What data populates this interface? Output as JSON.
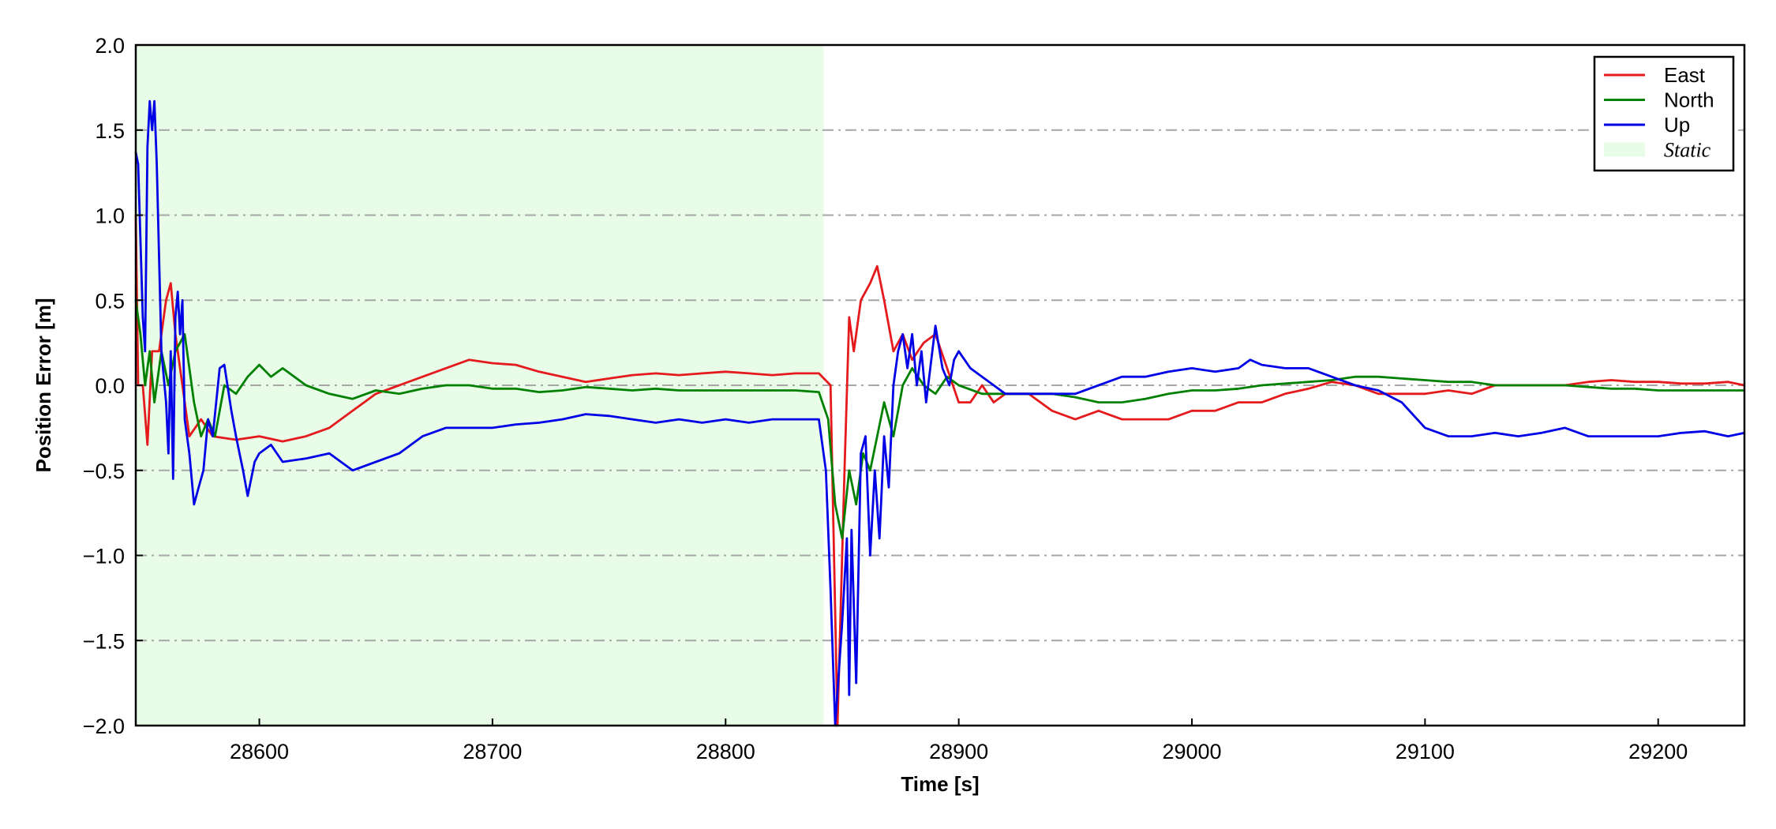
{
  "chart_data": {
    "type": "line",
    "title": "",
    "xlabel": "Time [s]",
    "ylabel": "Position Error [m]",
    "xlim": [
      28547,
      29237
    ],
    "ylim": [
      -2.0,
      2.0
    ],
    "x_ticks": [
      28600,
      28700,
      28800,
      28900,
      29000,
      29100,
      29200
    ],
    "x_tick_labels": [
      "28600",
      "28700",
      "28800",
      "28900",
      "29000",
      "29100",
      "29200"
    ],
    "y_ticks": [
      2.0,
      1.5,
      1.0,
      0.5,
      0.0,
      -0.5,
      -1.0,
      -1.5,
      -2.0
    ],
    "y_tick_labels": [
      "2.0",
      "1.5",
      "1.0",
      "0.5",
      "0.0",
      "−0.5",
      "−1.0",
      "−1.5",
      "−2.0"
    ],
    "grid": "horizontal dash-dot",
    "legend_position": "top-right",
    "shaded_region": {
      "name": "Static",
      "x_start": 28547,
      "x_end": 28842,
      "color": "#e8fce8"
    },
    "series": [
      {
        "name": "East",
        "color": "#e41a1c",
        "points": [
          [
            28547,
            1.0
          ],
          [
            28548,
            0.0
          ],
          [
            28550,
            0.0
          ],
          [
            28552,
            -0.35
          ],
          [
            28554,
            0.2
          ],
          [
            28557,
            0.2
          ],
          [
            28560,
            0.5
          ],
          [
            28562,
            0.6
          ],
          [
            28564,
            0.3
          ],
          [
            28567,
            0.0
          ],
          [
            28570,
            -0.3
          ],
          [
            28575,
            -0.2
          ],
          [
            28580,
            -0.3
          ],
          [
            28590,
            -0.32
          ],
          [
            28600,
            -0.3
          ],
          [
            28610,
            -0.33
          ],
          [
            28620,
            -0.3
          ],
          [
            28630,
            -0.25
          ],
          [
            28640,
            -0.15
          ],
          [
            28650,
            -0.05
          ],
          [
            28660,
            0.0
          ],
          [
            28670,
            0.05
          ],
          [
            28680,
            0.1
          ],
          [
            28690,
            0.15
          ],
          [
            28700,
            0.13
          ],
          [
            28710,
            0.12
          ],
          [
            28720,
            0.08
          ],
          [
            28730,
            0.05
          ],
          [
            28740,
            0.02
          ],
          [
            28750,
            0.04
          ],
          [
            28760,
            0.06
          ],
          [
            28770,
            0.07
          ],
          [
            28780,
            0.06
          ],
          [
            28790,
            0.07
          ],
          [
            28800,
            0.08
          ],
          [
            28810,
            0.07
          ],
          [
            28820,
            0.06
          ],
          [
            28830,
            0.07
          ],
          [
            28840,
            0.07
          ],
          [
            28845,
            0.0
          ],
          [
            28848,
            -2.0
          ],
          [
            28851,
            -0.5
          ],
          [
            28853,
            0.4
          ],
          [
            28855,
            0.2
          ],
          [
            28858,
            0.5
          ],
          [
            28862,
            0.6
          ],
          [
            28865,
            0.7
          ],
          [
            28868,
            0.5
          ],
          [
            28872,
            0.2
          ],
          [
            28876,
            0.3
          ],
          [
            28880,
            0.15
          ],
          [
            28885,
            0.25
          ],
          [
            28890,
            0.3
          ],
          [
            28895,
            0.1
          ],
          [
            28900,
            -0.1
          ],
          [
            28905,
            -0.1
          ],
          [
            28910,
            -0.0
          ],
          [
            28915,
            -0.1
          ],
          [
            28920,
            -0.05
          ],
          [
            28930,
            -0.05
          ],
          [
            28940,
            -0.15
          ],
          [
            28950,
            -0.2
          ],
          [
            28960,
            -0.15
          ],
          [
            28970,
            -0.2
          ],
          [
            28980,
            -0.2
          ],
          [
            28990,
            -0.2
          ],
          [
            29000,
            -0.15
          ],
          [
            29010,
            -0.15
          ],
          [
            29020,
            -0.1
          ],
          [
            29030,
            -0.1
          ],
          [
            29040,
            -0.05
          ],
          [
            29050,
            -0.02
          ],
          [
            29060,
            0.02
          ],
          [
            29070,
            0.0
          ],
          [
            29080,
            -0.05
          ],
          [
            29090,
            -0.05
          ],
          [
            29100,
            -0.05
          ],
          [
            29110,
            -0.03
          ],
          [
            29120,
            -0.05
          ],
          [
            29130,
            0.0
          ],
          [
            29140,
            0.0
          ],
          [
            29150,
            0.0
          ],
          [
            29160,
            0.0
          ],
          [
            29170,
            0.02
          ],
          [
            29180,
            0.03
          ],
          [
            29190,
            0.02
          ],
          [
            29200,
            0.02
          ],
          [
            29210,
            0.01
          ],
          [
            29220,
            0.01
          ],
          [
            29230,
            0.02
          ],
          [
            29237,
            0.0
          ]
        ]
      },
      {
        "name": "North",
        "color": "#008000",
        "points": [
          [
            28547,
            0.5
          ],
          [
            28549,
            0.3
          ],
          [
            28551,
            0.0
          ],
          [
            28553,
            0.2
          ],
          [
            28555,
            -0.1
          ],
          [
            28558,
            0.2
          ],
          [
            28561,
            0.0
          ],
          [
            28564,
            0.2
          ],
          [
            28568,
            0.3
          ],
          [
            28572,
            -0.1
          ],
          [
            28575,
            -0.3
          ],
          [
            28578,
            -0.2
          ],
          [
            28581,
            -0.3
          ],
          [
            28585,
            0.0
          ],
          [
            28590,
            -0.05
          ],
          [
            28595,
            0.05
          ],
          [
            28600,
            0.12
          ],
          [
            28605,
            0.05
          ],
          [
            28610,
            0.1
          ],
          [
            28620,
            0.0
          ],
          [
            28630,
            -0.05
          ],
          [
            28640,
            -0.08
          ],
          [
            28650,
            -0.03
          ],
          [
            28660,
            -0.05
          ],
          [
            28670,
            -0.02
          ],
          [
            28680,
            0.0
          ],
          [
            28690,
            0.0
          ],
          [
            28700,
            -0.02
          ],
          [
            28710,
            -0.02
          ],
          [
            28720,
            -0.04
          ],
          [
            28730,
            -0.03
          ],
          [
            28740,
            -0.01
          ],
          [
            28750,
            -0.02
          ],
          [
            28760,
            -0.03
          ],
          [
            28770,
            -0.02
          ],
          [
            28780,
            -0.03
          ],
          [
            28790,
            -0.03
          ],
          [
            28800,
            -0.03
          ],
          [
            28810,
            -0.03
          ],
          [
            28820,
            -0.03
          ],
          [
            28830,
            -0.03
          ],
          [
            28840,
            -0.04
          ],
          [
            28844,
            -0.2
          ],
          [
            28847,
            -0.7
          ],
          [
            28850,
            -0.9
          ],
          [
            28853,
            -0.5
          ],
          [
            28856,
            -0.7
          ],
          [
            28859,
            -0.4
          ],
          [
            28862,
            -0.5
          ],
          [
            28865,
            -0.3
          ],
          [
            28868,
            -0.1
          ],
          [
            28872,
            -0.3
          ],
          [
            28876,
            0.0
          ],
          [
            28880,
            0.1
          ],
          [
            28885,
            0.0
          ],
          [
            28890,
            -0.05
          ],
          [
            28895,
            0.05
          ],
          [
            28900,
            0.0
          ],
          [
            28910,
            -0.05
          ],
          [
            28920,
            -0.05
          ],
          [
            28930,
            -0.05
          ],
          [
            28940,
            -0.05
          ],
          [
            28950,
            -0.07
          ],
          [
            28960,
            -0.1
          ],
          [
            28970,
            -0.1
          ],
          [
            28980,
            -0.08
          ],
          [
            28990,
            -0.05
          ],
          [
            29000,
            -0.03
          ],
          [
            29010,
            -0.03
          ],
          [
            29020,
            -0.02
          ],
          [
            29030,
            0.0
          ],
          [
            29040,
            0.01
          ],
          [
            29050,
            0.02
          ],
          [
            29060,
            0.03
          ],
          [
            29070,
            0.05
          ],
          [
            29080,
            0.05
          ],
          [
            29090,
            0.04
          ],
          [
            29100,
            0.03
          ],
          [
            29110,
            0.02
          ],
          [
            29120,
            0.02
          ],
          [
            29130,
            0.0
          ],
          [
            29140,
            0.0
          ],
          [
            29150,
            0.0
          ],
          [
            29160,
            0.0
          ],
          [
            29170,
            -0.01
          ],
          [
            29180,
            -0.02
          ],
          [
            29190,
            -0.02
          ],
          [
            29200,
            -0.03
          ],
          [
            29210,
            -0.03
          ],
          [
            29220,
            -0.03
          ],
          [
            29230,
            -0.03
          ],
          [
            29237,
            -0.03
          ]
        ]
      },
      {
        "name": "Up",
        "color": "#0000e6",
        "points": [
          [
            28547,
            1.37
          ],
          [
            28548,
            1.3
          ],
          [
            28550,
            0.4
          ],
          [
            28551,
            0.2
          ],
          [
            28552,
            1.4
          ],
          [
            28553,
            1.67
          ],
          [
            28554,
            1.5
          ],
          [
            28555,
            1.67
          ],
          [
            28556,
            1.3
          ],
          [
            28558,
            0.2
          ],
          [
            28560,
            -0.1
          ],
          [
            28561,
            -0.4
          ],
          [
            28562,
            0.2
          ],
          [
            28563,
            -0.55
          ],
          [
            28564,
            0.4
          ],
          [
            28565,
            0.55
          ],
          [
            28566,
            0.3
          ],
          [
            28567,
            0.5
          ],
          [
            28568,
            -0.2
          ],
          [
            28570,
            -0.4
          ],
          [
            28572,
            -0.7
          ],
          [
            28574,
            -0.6
          ],
          [
            28576,
            -0.5
          ],
          [
            28578,
            -0.2
          ],
          [
            28580,
            -0.3
          ],
          [
            28583,
            0.1
          ],
          [
            28585,
            0.12
          ],
          [
            28588,
            -0.15
          ],
          [
            28590,
            -0.3
          ],
          [
            28593,
            -0.5
          ],
          [
            28595,
            -0.65
          ],
          [
            28598,
            -0.45
          ],
          [
            28600,
            -0.4
          ],
          [
            28605,
            -0.35
          ],
          [
            28610,
            -0.45
          ],
          [
            28620,
            -0.43
          ],
          [
            28630,
            -0.4
          ],
          [
            28640,
            -0.5
          ],
          [
            28650,
            -0.45
          ],
          [
            28660,
            -0.4
          ],
          [
            28670,
            -0.3
          ],
          [
            28680,
            -0.25
          ],
          [
            28690,
            -0.25
          ],
          [
            28700,
            -0.25
          ],
          [
            28710,
            -0.23
          ],
          [
            28720,
            -0.22
          ],
          [
            28730,
            -0.2
          ],
          [
            28740,
            -0.17
          ],
          [
            28750,
            -0.18
          ],
          [
            28760,
            -0.2
          ],
          [
            28770,
            -0.22
          ],
          [
            28780,
            -0.2
          ],
          [
            28790,
            -0.22
          ],
          [
            28800,
            -0.2
          ],
          [
            28810,
            -0.22
          ],
          [
            28820,
            -0.2
          ],
          [
            28830,
            -0.2
          ],
          [
            28840,
            -0.2
          ],
          [
            28843,
            -0.5
          ],
          [
            28845,
            -1.2
          ],
          [
            28847,
            -2.0
          ],
          [
            28850,
            -1.4
          ],
          [
            28852,
            -0.9
          ],
          [
            28853,
            -1.82
          ],
          [
            28854,
            -0.85
          ],
          [
            28856,
            -1.75
          ],
          [
            28858,
            -0.4
          ],
          [
            28860,
            -0.3
          ],
          [
            28862,
            -1.0
          ],
          [
            28864,
            -0.5
          ],
          [
            28866,
            -0.9
          ],
          [
            28868,
            -0.3
          ],
          [
            28870,
            -0.6
          ],
          [
            28872,
            0.0
          ],
          [
            28874,
            0.2
          ],
          [
            28876,
            0.3
          ],
          [
            28878,
            0.1
          ],
          [
            28880,
            0.3
          ],
          [
            28882,
            0.0
          ],
          [
            28884,
            0.2
          ],
          [
            28886,
            -0.1
          ],
          [
            28890,
            0.35
          ],
          [
            28893,
            0.1
          ],
          [
            28896,
            0.0
          ],
          [
            28898,
            0.15
          ],
          [
            28900,
            0.2
          ],
          [
            28905,
            0.1
          ],
          [
            28910,
            0.05
          ],
          [
            28915,
            0.0
          ],
          [
            28920,
            -0.05
          ],
          [
            28930,
            -0.05
          ],
          [
            28940,
            -0.05
          ],
          [
            28950,
            -0.05
          ],
          [
            28960,
            0.0
          ],
          [
            28970,
            0.05
          ],
          [
            28980,
            0.05
          ],
          [
            28990,
            0.08
          ],
          [
            29000,
            0.1
          ],
          [
            29010,
            0.08
          ],
          [
            29020,
            0.1
          ],
          [
            29025,
            0.15
          ],
          [
            29030,
            0.12
          ],
          [
            29040,
            0.1
          ],
          [
            29050,
            0.1
          ],
          [
            29060,
            0.05
          ],
          [
            29070,
            0.0
          ],
          [
            29080,
            -0.03
          ],
          [
            29090,
            -0.1
          ],
          [
            29100,
            -0.25
          ],
          [
            29110,
            -0.3
          ],
          [
            29120,
            -0.3
          ],
          [
            29130,
            -0.28
          ],
          [
            29140,
            -0.3
          ],
          [
            29150,
            -0.28
          ],
          [
            29160,
            -0.25
          ],
          [
            29170,
            -0.3
          ],
          [
            29180,
            -0.3
          ],
          [
            29190,
            -0.3
          ],
          [
            29200,
            -0.3
          ],
          [
            29210,
            -0.28
          ],
          [
            29220,
            -0.27
          ],
          [
            29230,
            -0.3
          ],
          [
            29237,
            -0.28
          ]
        ]
      }
    ]
  }
}
